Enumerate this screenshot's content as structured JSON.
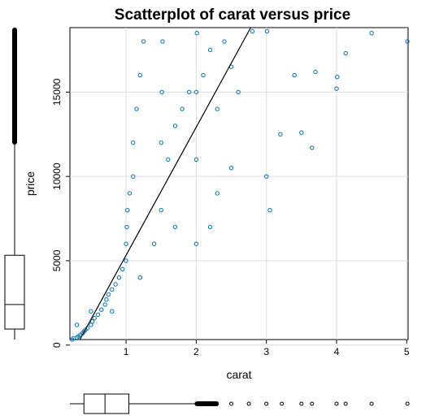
{
  "chart_data": {
    "type": "scatter",
    "title": "Scatterplot of carat versus price",
    "xlabel": "carat",
    "ylabel": "price",
    "xlim": [
      0.2,
      5.02
    ],
    "ylim": [
      326,
      18823
    ],
    "x_ticks": [
      1,
      2,
      3,
      4,
      5
    ],
    "y_ticks": [
      0,
      5000,
      10000,
      15000
    ],
    "grid": true,
    "point_color": "#0072B2",
    "fit_line": {
      "from": [
        0.3,
        0
      ],
      "to": [
        2.8,
        19000
      ]
    },
    "series": [
      {
        "values": [
          [
            0.23,
            330
          ],
          [
            0.25,
            400
          ],
          [
            0.3,
            450
          ],
          [
            0.32,
            520
          ],
          [
            0.35,
            600
          ],
          [
            0.38,
            700
          ],
          [
            0.4,
            800
          ],
          [
            0.42,
            900
          ],
          [
            0.45,
            1000
          ],
          [
            0.5,
            1200
          ],
          [
            0.52,
            1400
          ],
          [
            0.55,
            1600
          ],
          [
            0.6,
            1800
          ],
          [
            0.65,
            2100
          ],
          [
            0.7,
            2400
          ],
          [
            0.72,
            2700
          ],
          [
            0.75,
            3000
          ],
          [
            0.8,
            3300
          ],
          [
            0.85,
            3600
          ],
          [
            0.9,
            4000
          ],
          [
            0.95,
            4500
          ],
          [
            1.0,
            5000
          ],
          [
            1.0,
            6000
          ],
          [
            1.01,
            7000
          ],
          [
            1.02,
            8000
          ],
          [
            1.05,
            9000
          ],
          [
            1.1,
            10000
          ],
          [
            1.1,
            12000
          ],
          [
            1.15,
            14000
          ],
          [
            1.2,
            16000
          ],
          [
            1.25,
            18000
          ],
          [
            1.5,
            8000
          ],
          [
            1.5,
            12000
          ],
          [
            1.51,
            15000
          ],
          [
            1.52,
            18000
          ],
          [
            1.6,
            11000
          ],
          [
            1.7,
            13000
          ],
          [
            1.8,
            14000
          ],
          [
            1.9,
            15000
          ],
          [
            2.0,
            11000
          ],
          [
            2.0,
            15000
          ],
          [
            2.01,
            18500
          ],
          [
            2.1,
            16000
          ],
          [
            2.2,
            17500
          ],
          [
            2.3,
            14000
          ],
          [
            2.4,
            18000
          ],
          [
            2.5,
            16500
          ],
          [
            2.6,
            15000
          ],
          [
            2.8,
            18600
          ],
          [
            3.0,
            10000
          ],
          [
            3.01,
            18600
          ],
          [
            3.05,
            8000
          ],
          [
            3.2,
            12500
          ],
          [
            3.5,
            12600
          ],
          [
            3.65,
            11700
          ],
          [
            3.4,
            16000
          ],
          [
            3.7,
            16200
          ],
          [
            4.0,
            15200
          ],
          [
            4.01,
            15900
          ],
          [
            4.13,
            17300
          ],
          [
            4.5,
            18500
          ],
          [
            5.01,
            18000
          ],
          [
            0.3,
            1200
          ],
          [
            0.5,
            2000
          ],
          [
            0.8,
            2000
          ],
          [
            1.2,
            4000
          ],
          [
            1.4,
            6000
          ],
          [
            1.7,
            7000
          ],
          [
            2.0,
            6000
          ],
          [
            2.3,
            9000
          ],
          [
            2.5,
            10500
          ],
          [
            2.2,
            7000
          ]
        ]
      }
    ],
    "x_boxplot": {
      "min": 0.2,
      "q1": 0.4,
      "median": 0.7,
      "q3": 1.04,
      "whisker_hi": 2.0,
      "outliers": [
        2.05,
        2.2,
        2.5,
        2.75,
        3.0,
        3.22,
        3.5,
        3.65,
        4.0,
        4.13,
        4.5,
        5.01
      ]
    },
    "y_boxplot": {
      "min": 326,
      "q1": 950,
      "median": 2401,
      "q3": 5324,
      "whisker_hi": 11886
    }
  }
}
